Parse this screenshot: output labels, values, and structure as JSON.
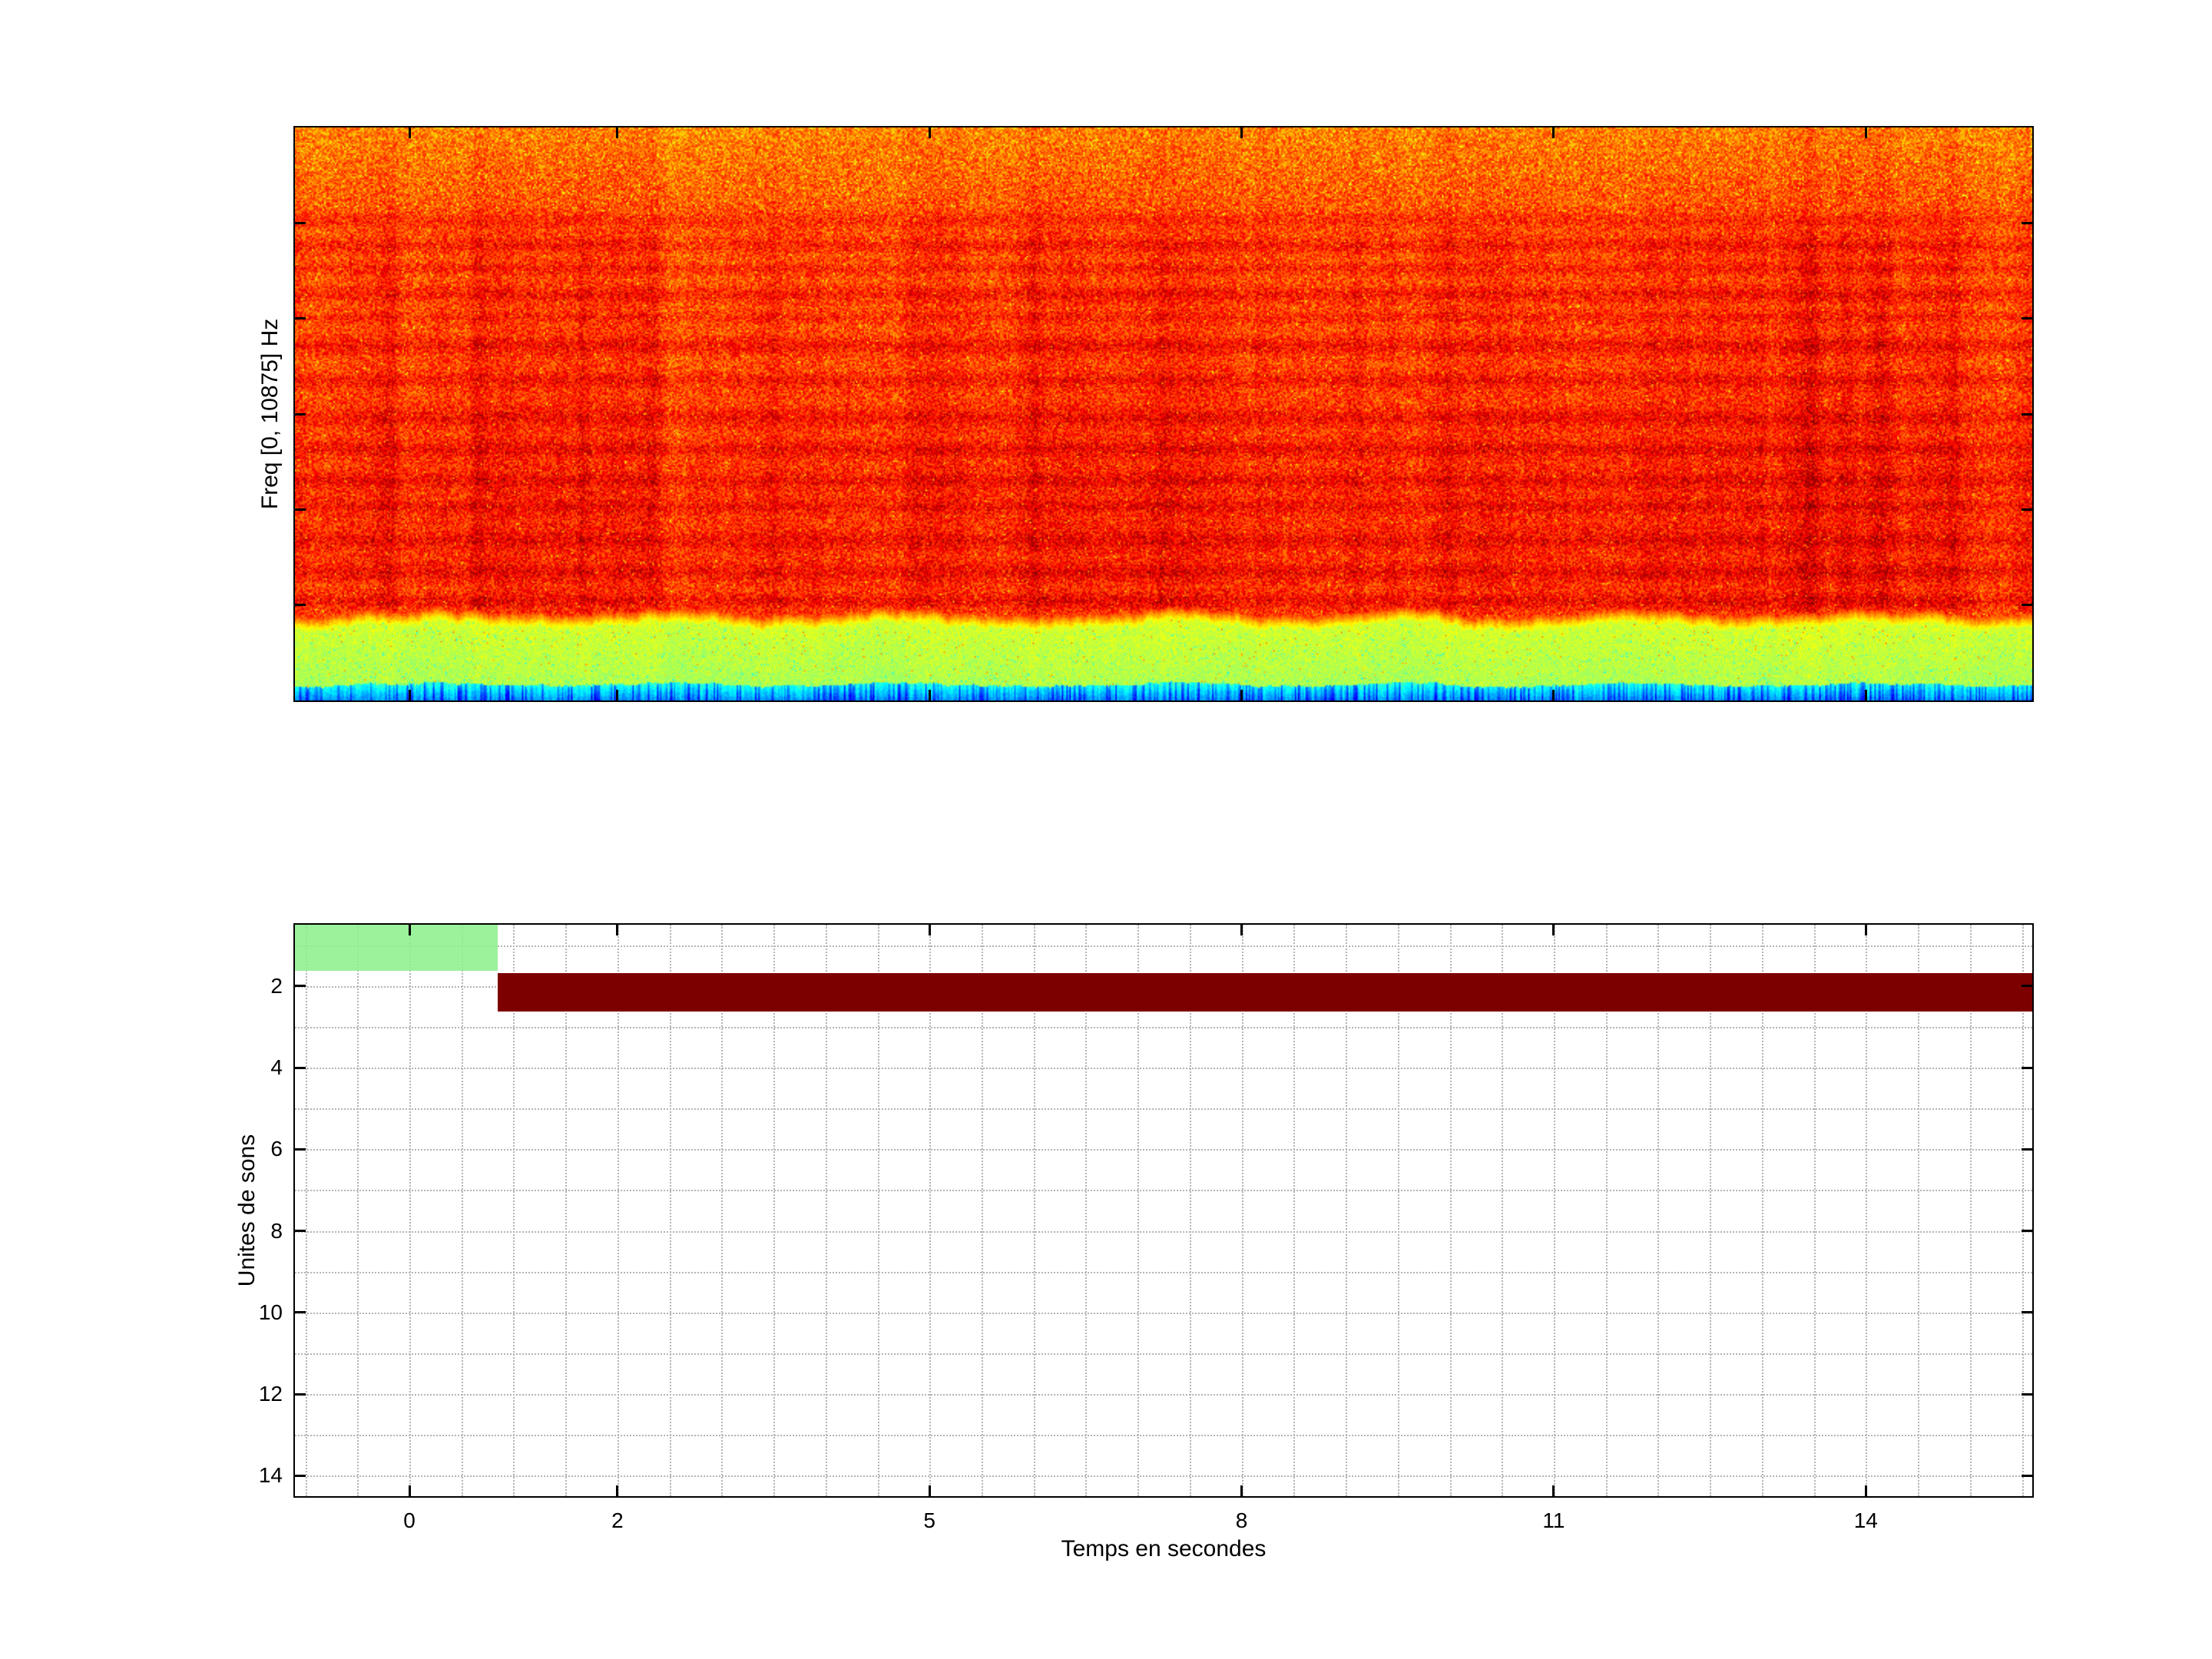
{
  "colors": {
    "background": "#ffffff",
    "axes_border": "#000000",
    "grid": "#b4b4b4",
    "segment_green": "#8df08c",
    "segment_maroon": "#7d0000"
  },
  "chart_data": [
    {
      "type": "heatmap",
      "subtype": "spectrogram",
      "title": "",
      "xlabel": "",
      "ylabel": "Freq [0, 10875] Hz",
      "freq_range_hz": [
        0,
        10875
      ],
      "xlim": [
        -1.1,
        15.6
      ],
      "colormap": "jet",
      "description": "Dense orange-red noise spectrogram with darker red horizontal bands, lighter orange top region, a yellow-green low-frequency band near the bottom and a thin cyan-blue strip at the lowest frequencies; faint darker vertical streaks, strongest near the right side.",
      "noise_seed": 1337,
      "low_band_frac": 0.858,
      "cyan_band_frac": 0.972,
      "dark_bands": [
        {
          "y": 0.16,
          "s": 0.035,
          "w": 0.012
        },
        {
          "y": 0.205,
          "s": 0.05,
          "w": 0.012
        },
        {
          "y": 0.245,
          "s": 0.045,
          "w": 0.01
        },
        {
          "y": 0.29,
          "s": 0.055,
          "w": 0.013
        },
        {
          "y": 0.33,
          "s": 0.04,
          "w": 0.01
        },
        {
          "y": 0.38,
          "s": 0.06,
          "w": 0.014
        },
        {
          "y": 0.44,
          "s": 0.05,
          "w": 0.012
        },
        {
          "y": 0.505,
          "s": 0.05,
          "w": 0.014
        },
        {
          "y": 0.56,
          "s": 0.05,
          "w": 0.012
        },
        {
          "y": 0.615,
          "s": 0.045,
          "w": 0.012
        },
        {
          "y": 0.66,
          "s": 0.04,
          "w": 0.01
        },
        {
          "y": 0.72,
          "s": 0.045,
          "w": 0.014
        },
        {
          "y": 0.775,
          "s": 0.05,
          "w": 0.014
        },
        {
          "y": 0.825,
          "s": 0.055,
          "w": 0.012
        }
      ],
      "vertical_streaks": [
        {
          "x": 0.055,
          "s": 0.02,
          "w": 0.004
        },
        {
          "x": 0.105,
          "s": 0.025,
          "w": 0.004
        },
        {
          "x": 0.165,
          "s": 0.02,
          "w": 0.003
        },
        {
          "x": 0.205,
          "s": 0.03,
          "w": 0.004
        },
        {
          "x": 0.3,
          "s": 0.02,
          "w": 0.003
        },
        {
          "x": 0.355,
          "s": 0.025,
          "w": 0.004
        },
        {
          "x": 0.425,
          "s": 0.03,
          "w": 0.004
        },
        {
          "x": 0.5,
          "s": 0.02,
          "w": 0.003
        },
        {
          "x": 0.555,
          "s": 0.025,
          "w": 0.003
        },
        {
          "x": 0.63,
          "s": 0.02,
          "w": 0.003
        },
        {
          "x": 0.665,
          "s": 0.03,
          "w": 0.004
        },
        {
          "x": 0.73,
          "s": 0.02,
          "w": 0.003
        },
        {
          "x": 0.8,
          "s": 0.028,
          "w": 0.004
        },
        {
          "x": 0.845,
          "s": 0.02,
          "w": 0.003
        },
        {
          "x": 0.872,
          "s": 0.05,
          "w": 0.006
        },
        {
          "x": 0.893,
          "s": 0.04,
          "w": 0.004
        },
        {
          "x": 0.912,
          "s": 0.055,
          "w": 0.008
        },
        {
          "x": 0.955,
          "s": 0.03,
          "w": 0.004
        }
      ],
      "xticks": [
        0,
        2,
        5,
        8,
        11,
        14
      ]
    },
    {
      "type": "bar",
      "subtype": "horizontal-time-segments",
      "title": "",
      "xlabel": "Temps en secondes",
      "ylabel": "Unites de sons",
      "xlim": [
        -1.1,
        15.6
      ],
      "ylim": [
        0.5,
        14.5
      ],
      "y_axis_direction": "top-to-bottom",
      "xticks": [
        0,
        2,
        5,
        8,
        11,
        14
      ],
      "yticks": [
        2,
        4,
        6,
        8,
        10,
        12,
        14
      ],
      "grid": {
        "x_step": 0.5,
        "y_step": 1,
        "style": "dotted",
        "color": "#b4b4b4"
      },
      "segments": [
        {
          "name": "sound-unit-1-segment",
          "row": 1,
          "y_top": 0.5,
          "y_bottom": 1.62,
          "t_start": -1.1,
          "t_end": 0.85,
          "color": "#8df08c"
        },
        {
          "name": "sound-unit-2-segment",
          "row": 2,
          "y_top": 1.68,
          "y_bottom": 2.62,
          "t_start": 0.85,
          "t_end": 15.6,
          "color": "#7d0000"
        }
      ]
    }
  ]
}
